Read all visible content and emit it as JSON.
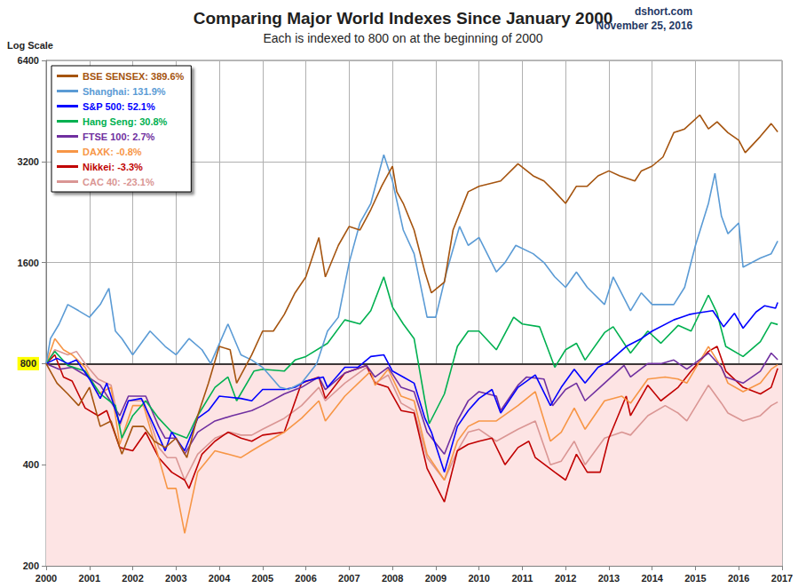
{
  "chart_data": {
    "type": "line",
    "title": "Comparing Major World Indexes Since January 2000",
    "subtitle": "Each is indexed to 800 on at the beginning of 2000",
    "annotations": [
      "dshort.com",
      "November 25, 2016"
    ],
    "y_label": "Log Scale",
    "log": "y",
    "grid": true,
    "legend": "upper left",
    "xlim": [
      2000,
      2017
    ],
    "xticks": [
      2000,
      2001,
      2002,
      2003,
      2004,
      2005,
      2006,
      2007,
      2008,
      2009,
      2010,
      2011,
      2012,
      2013,
      2014,
      2015,
      2016,
      2017
    ],
    "ylim": [
      200,
      6400
    ],
    "yticks": [
      200,
      400,
      800,
      1600,
      3200,
      6400
    ],
    "reference_line": 800,
    "series": [
      {
        "name": "BSE SENSEX: 389.6%",
        "color": "#a5540f",
        "x": [
          2000,
          2000.25,
          2000.5,
          2000.75,
          2001,
          2001.25,
          2001.5,
          2001.75,
          2002,
          2002.25,
          2002.5,
          2002.75,
          2003,
          2003.25,
          2003.5,
          2003.75,
          2004,
          2004.25,
          2004.4,
          2004.75,
          2005,
          2005.25,
          2005.5,
          2005.75,
          2006,
          2006.3,
          2006.45,
          2006.75,
          2007,
          2007.25,
          2007.5,
          2007.75,
          2008,
          2008.1,
          2008.25,
          2008.5,
          2008.75,
          2008.9,
          2009.2,
          2009.4,
          2009.75,
          2010,
          2010.5,
          2010.9,
          2011.25,
          2011.5,
          2011.75,
          2012,
          2012.25,
          2012.5,
          2012.75,
          2013,
          2013.25,
          2013.6,
          2013.75,
          2014,
          2014.25,
          2014.5,
          2014.75,
          2015.1,
          2015.3,
          2015.5,
          2015.75,
          2016,
          2016.15,
          2016.5,
          2016.75,
          2016.9
        ],
        "values": [
          800,
          700,
          650,
          600,
          680,
          520,
          540,
          430,
          520,
          520,
          470,
          450,
          480,
          420,
          560,
          700,
          900,
          880,
          700,
          850,
          1000,
          1000,
          1120,
          1300,
          1450,
          1900,
          1450,
          1800,
          2050,
          2000,
          2300,
          2700,
          3100,
          2600,
          2400,
          2000,
          1500,
          1300,
          1400,
          2000,
          2600,
          2700,
          2800,
          3150,
          2900,
          2800,
          2600,
          2400,
          2700,
          2700,
          2900,
          3000,
          2900,
          2800,
          3000,
          3100,
          3300,
          3900,
          4000,
          4400,
          4000,
          4200,
          3900,
          3700,
          3400,
          3800,
          4150,
          3917
        ]
      },
      {
        "name": "Shanghai: 131.9%",
        "color": "#5b9bd5",
        "x": [
          2000,
          2000.1,
          2000.3,
          2000.5,
          2000.75,
          2001,
          2001.25,
          2001.45,
          2001.6,
          2001.75,
          2002,
          2002.4,
          2002.75,
          2003,
          2003.3,
          2003.6,
          2003.8,
          2004.2,
          2004.5,
          2004.75,
          2005,
          2005.4,
          2005.6,
          2005.9,
          2006.25,
          2006.5,
          2006.75,
          2007,
          2007.25,
          2007.5,
          2007.8,
          2008,
          2008.25,
          2008.5,
          2008.8,
          2009,
          2009.25,
          2009.55,
          2009.75,
          2010,
          2010.4,
          2010.6,
          2010.85,
          2011.25,
          2011.5,
          2011.75,
          2012,
          2012.25,
          2012.5,
          2012.9,
          2013.1,
          2013.5,
          2013.75,
          2014,
          2014.5,
          2014.75,
          2015,
          2015.3,
          2015.45,
          2015.6,
          2015.75,
          2016,
          2016.1,
          2016.5,
          2016.75,
          2016.9
        ],
        "values": [
          800,
          950,
          1050,
          1200,
          1150,
          1100,
          1200,
          1340,
          1000,
          950,
          850,
          1000,
          900,
          850,
          950,
          880,
          800,
          1050,
          850,
          820,
          780,
          680,
          670,
          700,
          800,
          1000,
          1100,
          1600,
          2100,
          2400,
          3350,
          2800,
          2000,
          1700,
          1100,
          1100,
          1500,
          2050,
          1800,
          1900,
          1500,
          1600,
          1800,
          1700,
          1600,
          1450,
          1350,
          1500,
          1350,
          1200,
          1450,
          1150,
          1300,
          1200,
          1200,
          1350,
          1800,
          2400,
          2950,
          2200,
          1950,
          2100,
          1550,
          1650,
          1700,
          1855
        ]
      },
      {
        "name": "S&P 500: 52.1%",
        "color": "#0000ff",
        "x": [
          2000,
          2000.25,
          2000.5,
          2000.7,
          2001,
          2001.25,
          2001.4,
          2001.7,
          2001.9,
          2002.2,
          2002.5,
          2002.75,
          2002.9,
          2003.2,
          2003.5,
          2003.75,
          2004,
          2004.5,
          2004.75,
          2005,
          2005.5,
          2005.75,
          2006,
          2006.4,
          2006.5,
          2006.9,
          2007.2,
          2007.5,
          2007.8,
          2008,
          2008.25,
          2008.5,
          2008.75,
          2008.9,
          2009.2,
          2009.5,
          2009.75,
          2010,
          2010.3,
          2010.5,
          2010.9,
          2011.3,
          2011.65,
          2011.9,
          2012.2,
          2012.45,
          2012.75,
          2013,
          2013.4,
          2013.75,
          2014,
          2014.5,
          2014.85,
          2015,
          2015.4,
          2015.65,
          2015.9,
          2016.1,
          2016.4,
          2016.6,
          2016.85,
          2016.9
        ],
        "values": [
          800,
          830,
          800,
          820,
          720,
          630,
          700,
          530,
          620,
          630,
          520,
          440,
          500,
          440,
          550,
          580,
          640,
          630,
          620,
          670,
          670,
          680,
          710,
          730,
          680,
          780,
          780,
          840,
          850,
          760,
          730,
          700,
          550,
          500,
          380,
          520,
          580,
          630,
          670,
          570,
          680,
          740,
          600,
          680,
          770,
          700,
          780,
          810,
          900,
          950,
          1000,
          1080,
          1120,
          1130,
          1150,
          1030,
          1130,
          1020,
          1140,
          1190,
          1170,
          1217
        ]
      },
      {
        "name": "Hang Seng: 30.8%",
        "color": "#00b050",
        "x": [
          2000,
          2000.2,
          2000.5,
          2000.9,
          2001.25,
          2001.6,
          2001.75,
          2002,
          2002.3,
          2002.6,
          2002.9,
          2003.25,
          2003.5,
          2003.9,
          2004.2,
          2004.4,
          2004.8,
          2005,
          2005.5,
          2005.75,
          2006,
          2006.5,
          2006.9,
          2007.25,
          2007.5,
          2007.8,
          2008,
          2008.25,
          2008.5,
          2008.75,
          2008.85,
          2009.2,
          2009.5,
          2009.75,
          2010,
          2010.4,
          2010.8,
          2011,
          2011.4,
          2011.75,
          2012,
          2012.25,
          2012.45,
          2012.9,
          2013.1,
          2013.5,
          2013.9,
          2014.2,
          2014.6,
          2014.9,
          2015.3,
          2015.5,
          2015.7,
          2016.1,
          2016.5,
          2016.75,
          2016.9
        ],
        "values": [
          800,
          870,
          790,
          760,
          650,
          600,
          480,
          560,
          620,
          550,
          500,
          480,
          560,
          680,
          730,
          620,
          760,
          770,
          760,
          820,
          840,
          920,
          1080,
          1050,
          1150,
          1450,
          1180,
          1050,
          950,
          620,
          530,
          650,
          900,
          1000,
          1000,
          880,
          1100,
          1050,
          1030,
          780,
          880,
          920,
          820,
          990,
          1030,
          860,
          1000,
          920,
          1040,
          1000,
          1280,
          1130,
          900,
          840,
          930,
          1060,
          1046
        ]
      },
      {
        "name": "FTSE 100: 2.7%",
        "color": "#7030a0",
        "x": [
          2000,
          2000.3,
          2000.6,
          2000.9,
          2001.25,
          2001.7,
          2001.9,
          2002.3,
          2002.6,
          2002.75,
          2003,
          2003.2,
          2003.5,
          2003.9,
          2004.3,
          2004.75,
          2005,
          2005.5,
          2005.9,
          2006.3,
          2006.45,
          2006.9,
          2007.4,
          2007.6,
          2007.9,
          2008.2,
          2008.5,
          2008.8,
          2009.2,
          2009.5,
          2009.75,
          2010,
          2010.4,
          2010.5,
          2010.9,
          2011.1,
          2011.5,
          2011.7,
          2012,
          2012.25,
          2012.45,
          2012.9,
          2013.35,
          2013.5,
          2013.9,
          2014.2,
          2014.5,
          2014.8,
          2015.3,
          2015.6,
          2015.7,
          2016.1,
          2016.5,
          2016.75,
          2016.9
        ],
        "values": [
          800,
          770,
          780,
          740,
          690,
          560,
          640,
          640,
          520,
          480,
          480,
          430,
          500,
          540,
          560,
          580,
          600,
          650,
          680,
          730,
          670,
          750,
          790,
          730,
          780,
          680,
          660,
          500,
          430,
          540,
          620,
          660,
          640,
          580,
          690,
          730,
          720,
          600,
          670,
          700,
          620,
          700,
          790,
          730,
          800,
          800,
          820,
          770,
          860,
          780,
          730,
          700,
          760,
          860,
          822
        ]
      },
      {
        "name": "DAXK: -0.8%",
        "color": "#f79646",
        "x": [
          2000,
          2000.2,
          2000.4,
          2000.6,
          2000.9,
          2001.2,
          2001.5,
          2001.7,
          2002,
          2002.25,
          2002.6,
          2002.8,
          2003,
          2003.2,
          2003.5,
          2003.9,
          2004.2,
          2004.5,
          2004.75,
          2005,
          2005.5,
          2005.9,
          2006.3,
          2006.45,
          2006.9,
          2007.5,
          2007.6,
          2007.9,
          2008.2,
          2008.5,
          2008.8,
          2009.2,
          2009.5,
          2009.75,
          2010,
          2010.4,
          2010.9,
          2011.3,
          2011.65,
          2011.9,
          2012.2,
          2012.45,
          2012.9,
          2013.3,
          2013.5,
          2013.9,
          2014.3,
          2014.6,
          2014.8,
          2015.3,
          2015.6,
          2015.75,
          2016.1,
          2016.5,
          2016.75,
          2016.9
        ],
        "values": [
          800,
          950,
          880,
          850,
          780,
          650,
          680,
          460,
          600,
          600,
          420,
          340,
          340,
          250,
          380,
          440,
          430,
          420,
          440,
          460,
          500,
          550,
          620,
          540,
          640,
          760,
          690,
          770,
          640,
          620,
          430,
          360,
          470,
          520,
          540,
          540,
          600,
          660,
          470,
          500,
          590,
          510,
          620,
          640,
          610,
          720,
          730,
          720,
          700,
          900,
          780,
          700,
          660,
          700,
          770,
          794
        ]
      },
      {
        "name": "Nikkei: -3.3%",
        "color": "#c00000",
        "x": [
          2000,
          2000.2,
          2000.4,
          2000.6,
          2000.9,
          2001.2,
          2001.4,
          2001.7,
          2002,
          2002.3,
          2002.6,
          2002.9,
          2003.2,
          2003.3,
          2003.6,
          2003.9,
          2004.2,
          2004.5,
          2004.75,
          2005,
          2005.5,
          2005.9,
          2006.3,
          2006.45,
          2006.9,
          2007.4,
          2007.6,
          2007.9,
          2008.2,
          2008.5,
          2008.8,
          2009.2,
          2009.5,
          2009.75,
          2010,
          2010.3,
          2010.6,
          2010.9,
          2011.15,
          2011.3,
          2011.75,
          2012,
          2012.25,
          2012.5,
          2012.8,
          2013,
          2013.4,
          2013.5,
          2013.9,
          2014.2,
          2014.6,
          2014.9,
          2015.3,
          2015.5,
          2015.7,
          2016.1,
          2016.5,
          2016.75,
          2016.9
        ],
        "values": [
          800,
          850,
          730,
          710,
          590,
          560,
          580,
          450,
          440,
          500,
          420,
          380,
          360,
          340,
          430,
          470,
          500,
          480,
          470,
          490,
          500,
          700,
          730,
          630,
          750,
          790,
          700,
          680,
          580,
          570,
          390,
          310,
          440,
          460,
          470,
          480,
          400,
          450,
          470,
          420,
          380,
          360,
          430,
          380,
          380,
          480,
          640,
          560,
          690,
          620,
          680,
          760,
          870,
          900,
          760,
          680,
          650,
          680,
          774
        ]
      },
      {
        "name": "CAC 40: -23.1%",
        "color": "#da9694",
        "x": [
          2000,
          2000.2,
          2000.5,
          2000.7,
          2000.9,
          2001.2,
          2001.5,
          2001.7,
          2001.9,
          2002.25,
          2002.6,
          2002.8,
          2003,
          2003.2,
          2003.5,
          2003.9,
          2004.25,
          2004.5,
          2004.75,
          2005,
          2005.5,
          2005.9,
          2006.3,
          2006.45,
          2006.9,
          2007.4,
          2007.6,
          2007.9,
          2008.2,
          2008.5,
          2008.8,
          2009.2,
          2009.5,
          2009.75,
          2010,
          2010.4,
          2010.9,
          2011.3,
          2011.65,
          2011.9,
          2012.2,
          2012.45,
          2012.9,
          2013.3,
          2013.5,
          2013.9,
          2014.3,
          2014.6,
          2014.8,
          2015.3,
          2015.6,
          2015.75,
          2016.1,
          2016.5,
          2016.75,
          2016.9
        ],
        "values": [
          800,
          880,
          850,
          870,
          800,
          720,
          690,
          520,
          620,
          620,
          450,
          420,
          420,
          360,
          430,
          480,
          500,
          490,
          490,
          510,
          550,
          600,
          680,
          620,
          700,
          780,
          700,
          740,
          610,
          580,
          420,
          360,
          440,
          500,
          510,
          470,
          510,
          540,
          400,
          410,
          470,
          400,
          480,
          500,
          490,
          560,
          600,
          570,
          540,
          690,
          610,
          570,
          540,
          560,
          600,
          615
        ]
      }
    ]
  }
}
